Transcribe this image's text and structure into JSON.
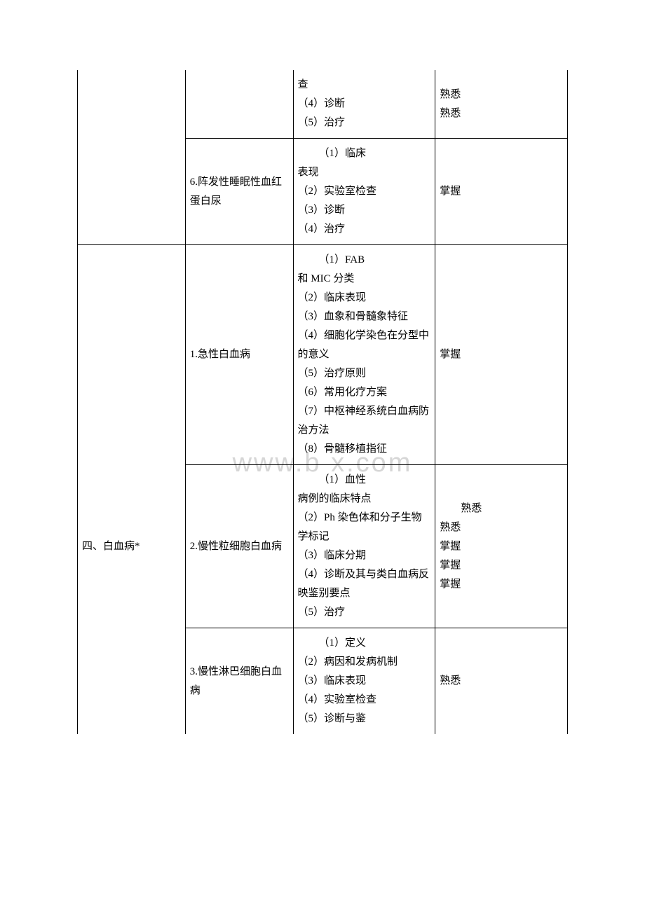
{
  "watermark": "www.b   x.com",
  "rows": [
    {
      "col1": "",
      "col2": "",
      "col3": "查\n（4）诊断\n（5）治疗",
      "col4": "熟悉\n熟悉",
      "col1_class": "no-top-border no-bottom-border",
      "col2_class": "no-top-border",
      "col3_class": "no-top-border",
      "col4_class": "no-top-border"
    },
    {
      "col1": "",
      "col2": "6.阵发性睡眠性血红蛋白尿",
      "col3_indent": "（1）临床",
      "col3": "表现\n（2）实验室检查\n（3）诊断\n（4）治疗",
      "col4": "掌握",
      "col1_class": "no-top-border"
    },
    {
      "col1": "",
      "col2": "1.急性白血病",
      "col3_indent": "（1）FAB",
      "col3": "和 MIC 分类\n（2）临床表现\n（3）血象和骨髓象特征\n（4）细胞化学染色在分型中的意义\n（5）治疗原则\n（6）常用化疗方案\n（7）中枢神经系统白血病防治方法\n（8）骨髓移植指征",
      "col4": "掌握",
      "col1_class": "no-bottom-border"
    },
    {
      "col1": "四、白血病*",
      "col2": "2.慢性粒细胞白血病",
      "col3_indent": "（1）血性",
      "col3": "病例的临床特点\n（2）Ph 染色体和分子生物学标记\n（3）临床分期\n（4）诊断及其与类白血病反映鉴别要点\n（5）治疗",
      "col4_indent": "熟悉",
      "col4": "熟悉\n掌握\n掌握\n掌握",
      "col1_class": "no-top-border no-bottom-border"
    },
    {
      "col1": "",
      "col2": "3.慢性淋巴细胞白血病",
      "col3_indent": "（1）定义",
      "col3": "（2）病因和发病机制\n（3）临床表现\n（4）实验室检查\n（5）诊断与鉴",
      "col4": "熟悉",
      "col1_class": "no-top-border no-bottom-border",
      "col2_class": "no-bottom-border",
      "col3_class": "no-bottom-border",
      "col4_class": "no-bottom-border"
    }
  ]
}
